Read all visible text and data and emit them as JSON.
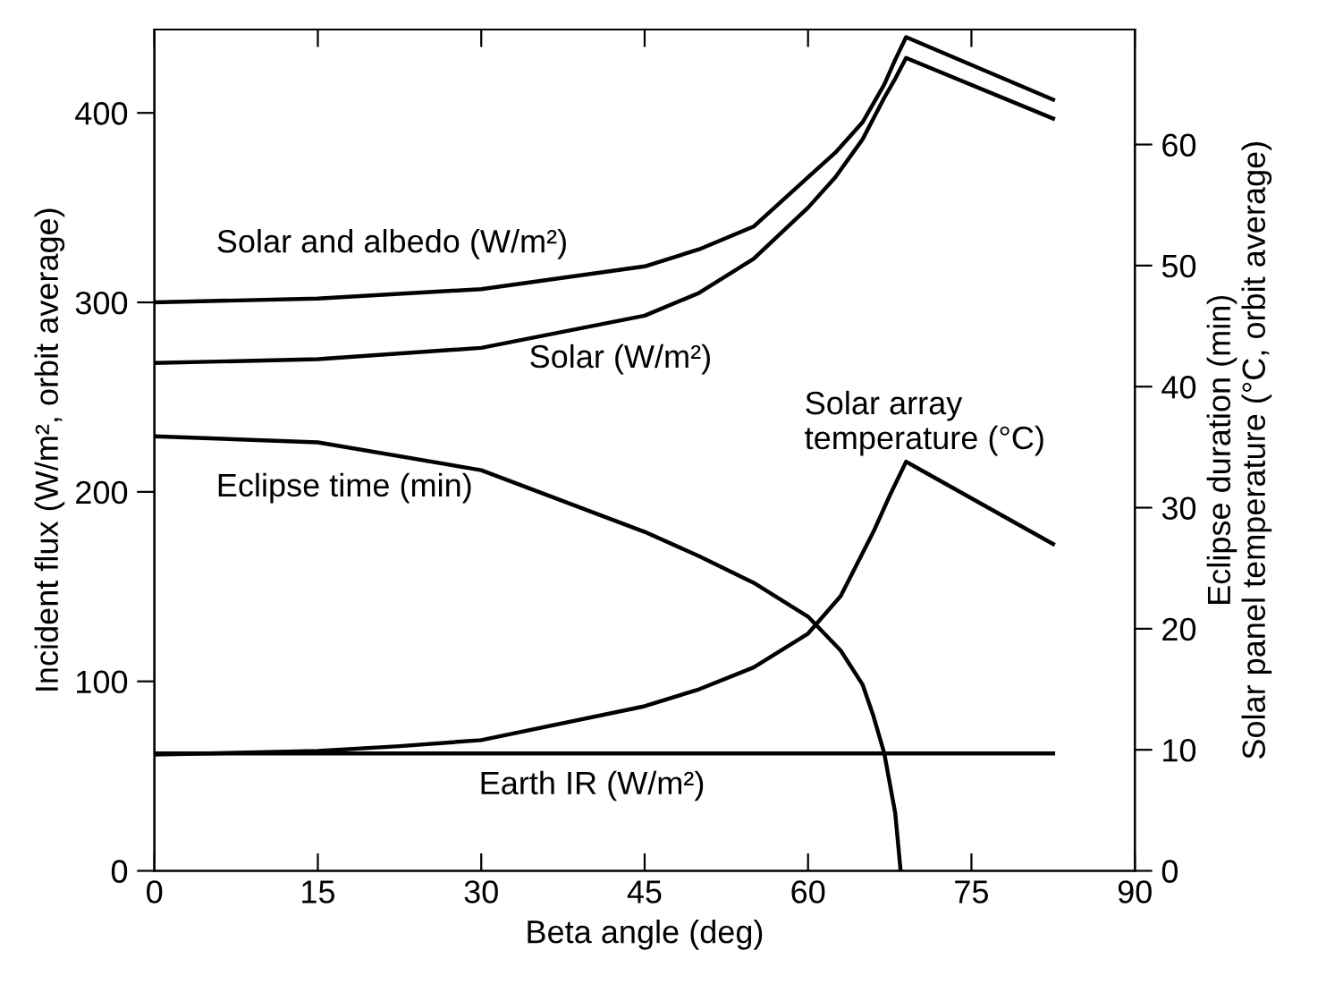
{
  "chart_data": {
    "type": "line",
    "xlabel": "Beta angle (deg)",
    "ylabel": "Incident flux (W/m², orbit average)",
    "y2label": "Eclipse duration (min)\nSolar panel temperature (°C, orbit average)",
    "xlim": [
      0,
      90
    ],
    "xticks": [
      0,
      15,
      30,
      45,
      60,
      75,
      90
    ],
    "ylim": [
      0,
      444
    ],
    "yticks": [
      0,
      100,
      200,
      300,
      400
    ],
    "y2lim": [
      0,
      69.5
    ],
    "y2ticks": [
      0,
      10,
      20,
      30,
      40,
      50,
      60
    ],
    "grid": false,
    "marker": "none",
    "line_style": "solid",
    "series": [
      {
        "color": "#000000",
        "x": [
          0,
          15,
          30,
          45,
          50,
          55,
          60,
          62.5,
          65,
          67,
          68,
          69,
          82.5
        ],
        "values": [
          300,
          302,
          307,
          319,
          328,
          340,
          366,
          379,
          395,
          415,
          428,
          440,
          407
        ]
      },
      {
        "color": "#000000",
        "x": [
          0,
          15,
          30,
          45,
          50,
          55,
          60,
          62.5,
          65,
          67,
          68,
          69,
          82.5
        ],
        "values": [
          268,
          270,
          276,
          293,
          305,
          323,
          350,
          366,
          386,
          408,
          418,
          429,
          397
        ]
      },
      {
        "color": "#000000",
        "axis": "y2",
        "x": [
          0,
          15,
          22.5,
          30,
          45,
          50,
          55,
          60,
          63,
          66,
          67.5,
          69,
          82.5
        ],
        "values": [
          9.6,
          9.9,
          10.3,
          10.8,
          13.6,
          15,
          16.8,
          19.6,
          22.7,
          28,
          31,
          33.8,
          27
        ]
      },
      {
        "color": "#000000",
        "axis": "y2",
        "x": [
          0,
          15,
          30,
          45,
          50,
          55,
          60,
          63,
          65,
          66,
          67,
          68,
          68.5
        ],
        "values": [
          35.9,
          35.4,
          33.1,
          28,
          26,
          23.8,
          21,
          18.2,
          15.4,
          12.8,
          9.7,
          4.8,
          0
        ]
      },
      {
        "color": "#000000",
        "x": [
          0,
          82.5
        ],
        "values": [
          62,
          62
        ]
      }
    ],
    "annotations": [
      "Solar and albedo (W/m²)",
      "Solar (W/m²)",
      "Solar array\ntemperature (°C)",
      "Eclipse time (min)",
      "Earth IR (W/m²)"
    ]
  }
}
